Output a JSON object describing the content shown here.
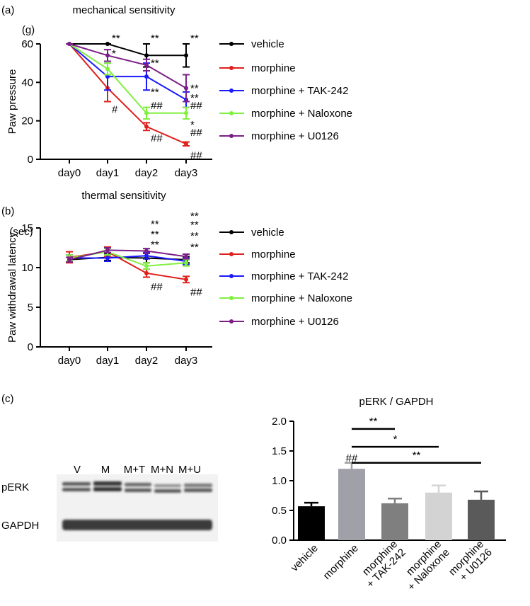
{
  "chart_data": [
    {
      "type": "line",
      "panel": "(a)",
      "title": "mechanical sensitivity",
      "unit_label": "(g)",
      "y_label": "Paw pressure",
      "categories": [
        "day0",
        "day1",
        "day2",
        "day3"
      ],
      "ylim": [
        0,
        60
      ],
      "yticks": [
        0,
        20,
        40,
        60
      ],
      "series": [
        {
          "name": "vehicle",
          "color": "#000000",
          "values": [
            60,
            60,
            54,
            54
          ],
          "errors": [
            0,
            0,
            6,
            6
          ]
        },
        {
          "name": "morphine",
          "color": "#e0201b",
          "values": [
            60,
            37,
            17,
            8
          ],
          "errors": [
            0,
            7,
            2,
            1
          ]
        },
        {
          "name": "morphine + TAK-242",
          "color": "#1a1aff",
          "values": [
            60,
            43,
            43,
            31
          ],
          "errors": [
            0,
            7,
            7,
            4
          ]
        },
        {
          "name": "morphine + Naloxone",
          "color": "#80f040",
          "values": [
            60,
            47,
            24,
            24
          ],
          "errors": [
            0,
            3,
            3,
            3
          ]
        },
        {
          "name": "morphine + U0126",
          "color": "#7b1f86",
          "values": [
            60,
            54,
            49,
            37
          ],
          "errors": [
            0,
            3,
            3,
            7
          ]
        }
      ],
      "annotations": [
        {
          "text": "**",
          "x": "day1",
          "y": 63,
          "color": "#000000"
        },
        {
          "text": "**",
          "x": "day2",
          "y": 63,
          "color": "#000000"
        },
        {
          "text": "**",
          "x": "day3",
          "y": 63,
          "color": "#000000"
        },
        {
          "text": "*",
          "x": "day1",
          "y": 55,
          "color": "#7b1f86"
        },
        {
          "text": "**",
          "x": "day2",
          "y": 50,
          "color": "#7b1f86"
        },
        {
          "text": "**",
          "x": "day3",
          "y": 37,
          "color": "#7b1f86"
        },
        {
          "text": "**",
          "x": "day2",
          "y": 35,
          "color": "#1a1aff"
        },
        {
          "text": "**",
          "x": "day3",
          "y": 32,
          "color": "#1a1aff"
        },
        {
          "text": "##",
          "x": "day3",
          "y": 28,
          "color": "#1a1aff"
        },
        {
          "text": "##",
          "x": "day2",
          "y": 28,
          "color": "#80f040"
        },
        {
          "text": "*",
          "x": "day3",
          "y": 18,
          "color": "#80f040"
        },
        {
          "text": "##",
          "x": "day3",
          "y": 14,
          "color": "#80f040"
        },
        {
          "text": "#",
          "x": "day1",
          "y": 26,
          "color": "#e0201b"
        },
        {
          "text": "##",
          "x": "day2",
          "y": 11,
          "color": "#e0201b"
        },
        {
          "text": "##",
          "x": "day3",
          "y": 2,
          "color": "#e0201b"
        }
      ]
    },
    {
      "type": "line",
      "panel": "(b)",
      "title": "thermal sensitivity",
      "unit_label": "(sec)",
      "y_label": "Paw withdrawal latency",
      "categories": [
        "day0",
        "day1",
        "day2",
        "day3"
      ],
      "ylim": [
        0,
        15
      ],
      "yticks": [
        0,
        5,
        10,
        15
      ],
      "series": [
        {
          "name": "vehicle",
          "color": "#000000",
          "values": [
            11,
            11.3,
            11.2,
            11
          ],
          "errors": [
            0.3,
            0.4,
            0.6,
            0.4
          ]
        },
        {
          "name": "morphine",
          "color": "#e0201b",
          "values": [
            11.3,
            12,
            9.3,
            8.5
          ],
          "errors": [
            0.7,
            0.6,
            0.5,
            0.4
          ]
        },
        {
          "name": "morphine + TAK-242",
          "color": "#1a1aff",
          "values": [
            11.2,
            11.2,
            11.5,
            10.8
          ],
          "errors": [
            0.4,
            0.4,
            0.4,
            0.4
          ]
        },
        {
          "name": "morphine + Naloxone",
          "color": "#80f040",
          "values": [
            11.2,
            12,
            10.2,
            10.6
          ],
          "errors": [
            0.4,
            0.4,
            0.4,
            0.4
          ]
        },
        {
          "name": "morphine + U0126",
          "color": "#7b1f86",
          "values": [
            11,
            12.2,
            12.1,
            11.4
          ],
          "errors": [
            0.3,
            0.3,
            0.3,
            0.3
          ]
        }
      ],
      "annotations": [
        {
          "text": "**",
          "x": "day2",
          "y": 15.5,
          "color": "#000000"
        },
        {
          "text": "**",
          "x": "day2",
          "y": 14.2,
          "color": "#1a1aff"
        },
        {
          "text": "**",
          "x": "day2",
          "y": 12.9,
          "color": "#7b1f86"
        },
        {
          "text": "**",
          "x": "day3",
          "y": 16.5,
          "color": "#000000"
        },
        {
          "text": "**",
          "x": "day3",
          "y": 15.4,
          "color": "#1a1aff"
        },
        {
          "text": "**",
          "x": "day3",
          "y": 14,
          "color": "#80f040"
        },
        {
          "text": "**",
          "x": "day3",
          "y": 12.6,
          "color": "#7b1f86"
        },
        {
          "text": "##",
          "x": "day2",
          "y": 7.6,
          "color": "#e0201b"
        },
        {
          "text": "##",
          "x": "day3",
          "y": 6.9,
          "color": "#e0201b"
        }
      ]
    },
    {
      "type": "bar",
      "title": "pERK / GAPDH",
      "categories": [
        "vehicle",
        "morphine",
        "morphine + TAK-242",
        "morphine + Naloxone",
        "morphine + U0126"
      ],
      "values": [
        0.57,
        1.2,
        0.62,
        0.8,
        0.68
      ],
      "errors": [
        0.06,
        0.1,
        0.08,
        0.12,
        0.14
      ],
      "colors": [
        "#000000",
        "#a0a0a8",
        "#7f7f7f",
        "#d3d3d3",
        "#5a5a5a"
      ],
      "ylim": [
        0,
        2
      ],
      "yticks": [
        {
          "value": 0,
          "label": "0.0"
        },
        {
          "value": 0.5,
          "label": "0.5"
        },
        {
          "value": 1,
          "label": "1.0"
        },
        {
          "value": 1.5,
          "label": "1.5"
        },
        {
          "value": 2,
          "label": "2.0"
        }
      ],
      "annotations": [
        {
          "text": "##",
          "x": "morphine",
          "y": 1.38,
          "color": "#000000"
        }
      ],
      "brackets": [
        {
          "from": "morphine",
          "to": "morphine + TAK-242",
          "y": 1.87,
          "label": "**"
        },
        {
          "from": "morphine",
          "to": "morphine + Naloxone",
          "y": 1.57,
          "label": "*"
        },
        {
          "from": "morphine",
          "to": "morphine + U0126",
          "y": 1.3,
          "label": "**"
        }
      ]
    }
  ],
  "blot": {
    "panel": "(c)",
    "lanes": [
      "V",
      "M",
      "M+T",
      "M+N",
      "M+U"
    ],
    "rows": [
      "pERK",
      "GAPDH"
    ]
  }
}
